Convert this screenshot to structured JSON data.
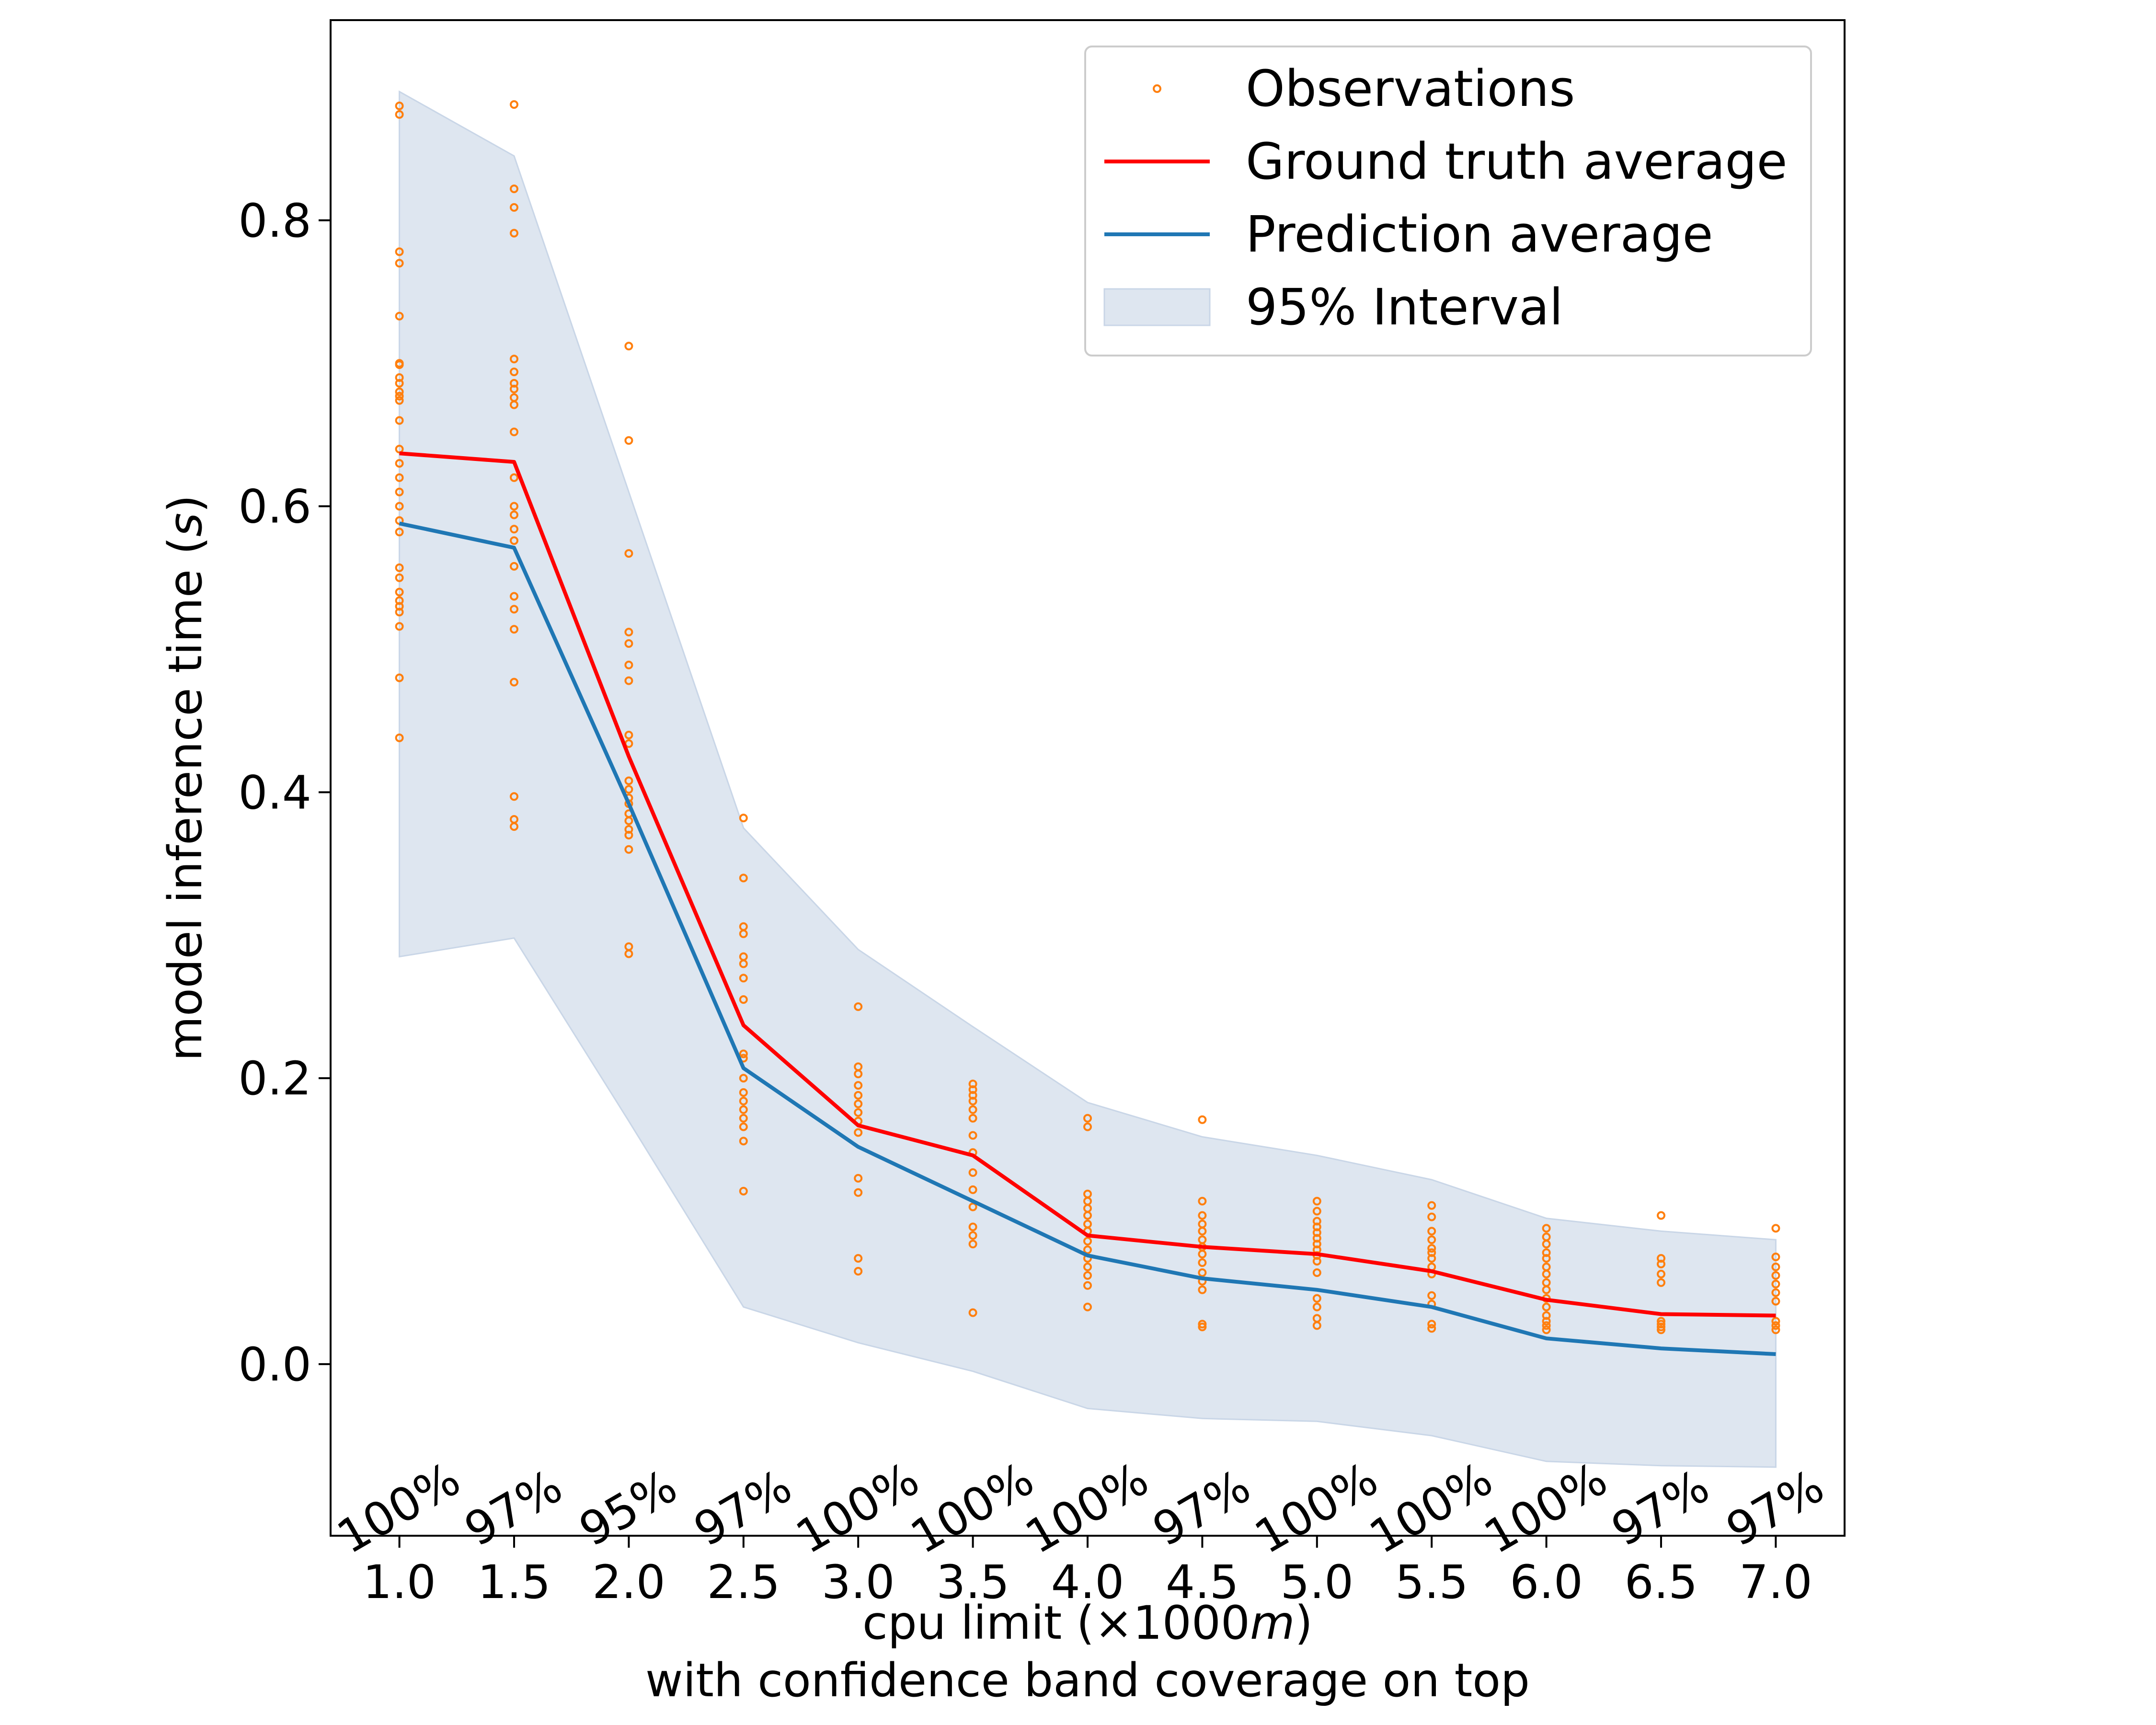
{
  "chart_data": {
    "type": "line",
    "xlabel": "cpu limit (×1000m)",
    "xlabel_parts": [
      "cpu limit (×1000",
      "m",
      ")"
    ],
    "xlabel2": "with confidence band coverage on top",
    "ylabel": "model inference time (s)",
    "ylabel_parts": [
      "model inference time (",
      "s",
      ")"
    ],
    "xlim": [
      0.7,
      7.3
    ],
    "ylim": [
      -0.12,
      0.94
    ],
    "x": [
      1.0,
      1.5,
      2.0,
      2.5,
      3.0,
      3.5,
      4.0,
      4.5,
      5.0,
      5.5,
      6.0,
      6.5,
      7.0
    ],
    "x_tick_labels": [
      "1.0",
      "1.5",
      "2.0",
      "2.5",
      "3.0",
      "3.5",
      "4.0",
      "4.5",
      "5.0",
      "5.5",
      "6.0",
      "6.5",
      "7.0"
    ],
    "y_ticks": [
      0.0,
      0.2,
      0.4,
      0.6,
      0.8
    ],
    "y_tick_labels": [
      "0.0",
      "0.2",
      "0.4",
      "0.6",
      "0.8"
    ],
    "coverage_labels": [
      "100%",
      "97%",
      "95%",
      "97%",
      "100%",
      "100%",
      "100%",
      "97%",
      "100%",
      "100%",
      "100%",
      "97%",
      "97%"
    ],
    "ground_truth_average": [
      0.637,
      0.631,
      0.425,
      0.237,
      0.167,
      0.146,
      0.09,
      0.082,
      0.077,
      0.065,
      0.045,
      0.035,
      0.034
    ],
    "prediction_average": [
      0.588,
      0.571,
      0.392,
      0.207,
      0.152,
      0.114,
      0.076,
      0.06,
      0.052,
      0.04,
      0.018,
      0.011,
      0.007
    ],
    "interval_upper": [
      0.89,
      0.845,
      0.61,
      0.375,
      0.29,
      0.236,
      0.183,
      0.159,
      0.146,
      0.129,
      0.102,
      0.093,
      0.087
    ],
    "interval_lower": [
      0.285,
      0.298,
      0.17,
      0.04,
      0.015,
      -0.005,
      -0.031,
      -0.038,
      -0.04,
      -0.05,
      -0.068,
      -0.071,
      -0.072
    ],
    "observations": [
      [
        0.88,
        0.874,
        0.778,
        0.77,
        0.733,
        0.7,
        0.699,
        0.69,
        0.686,
        0.68,
        0.677,
        0.674,
        0.66,
        0.64,
        0.63,
        0.62,
        0.61,
        0.6,
        0.59,
        0.582,
        0.557,
        0.55,
        0.54,
        0.534,
        0.53,
        0.526,
        0.516,
        0.48,
        0.438
      ],
      [
        0.881,
        0.822,
        0.809,
        0.791,
        0.703,
        0.694,
        0.686,
        0.682,
        0.676,
        0.671,
        0.652,
        0.62,
        0.6,
        0.594,
        0.584,
        0.576,
        0.558,
        0.537,
        0.528,
        0.514,
        0.477,
        0.397,
        0.381,
        0.376
      ],
      [
        0.712,
        0.646,
        0.567,
        0.512,
        0.504,
        0.489,
        0.478,
        0.44,
        0.434,
        0.408,
        0.402,
        0.396,
        0.392,
        0.385,
        0.38,
        0.374,
        0.37,
        0.36,
        0.292,
        0.287
      ],
      [
        0.382,
        0.34,
        0.306,
        0.301,
        0.285,
        0.28,
        0.27,
        0.255,
        0.217,
        0.214,
        0.2,
        0.19,
        0.184,
        0.178,
        0.172,
        0.166,
        0.156,
        0.121
      ],
      [
        0.25,
        0.208,
        0.203,
        0.195,
        0.188,
        0.182,
        0.176,
        0.17,
        0.162,
        0.13,
        0.12,
        0.074,
        0.065
      ],
      [
        0.196,
        0.192,
        0.188,
        0.184,
        0.178,
        0.172,
        0.16,
        0.148,
        0.134,
        0.122,
        0.11,
        0.096,
        0.09,
        0.084,
        0.036
      ],
      [
        0.172,
        0.166,
        0.119,
        0.114,
        0.109,
        0.104,
        0.098,
        0.093,
        0.086,
        0.08,
        0.074,
        0.068,
        0.062,
        0.055,
        0.04
      ],
      [
        0.171,
        0.114,
        0.104,
        0.098,
        0.093,
        0.087,
        0.082,
        0.077,
        0.071,
        0.064,
        0.058,
        0.052,
        0.028,
        0.026
      ],
      [
        0.114,
        0.107,
        0.1,
        0.096,
        0.092,
        0.088,
        0.084,
        0.08,
        0.076,
        0.072,
        0.064,
        0.046,
        0.04,
        0.032,
        0.027
      ],
      [
        0.111,
        0.103,
        0.093,
        0.087,
        0.081,
        0.078,
        0.074,
        0.068,
        0.063,
        0.048,
        0.042,
        0.028,
        0.025
      ],
      [
        0.095,
        0.089,
        0.084,
        0.078,
        0.074,
        0.068,
        0.063,
        0.057,
        0.052,
        0.046,
        0.04,
        0.034,
        0.03,
        0.027,
        0.024
      ],
      [
        0.104,
        0.074,
        0.07,
        0.063,
        0.057,
        0.03,
        0.028,
        0.026,
        0.024
      ],
      [
        0.095,
        0.075,
        0.068,
        0.062,
        0.056,
        0.05,
        0.044,
        0.03,
        0.027,
        0.024
      ]
    ],
    "grid": false,
    "legend": {
      "placement": "upper-right",
      "entries": [
        "Observations",
        "Ground truth average",
        "Prediction average",
        "95% Interval"
      ]
    },
    "colors": {
      "observations": "#ff7f0e",
      "ground_truth": "#ff0000",
      "prediction": "#1f77b4",
      "interval": "#dee6f0",
      "interval_edge": "#c9d6e7",
      "axes": "#000000",
      "legend_border": "#cccccc"
    }
  }
}
